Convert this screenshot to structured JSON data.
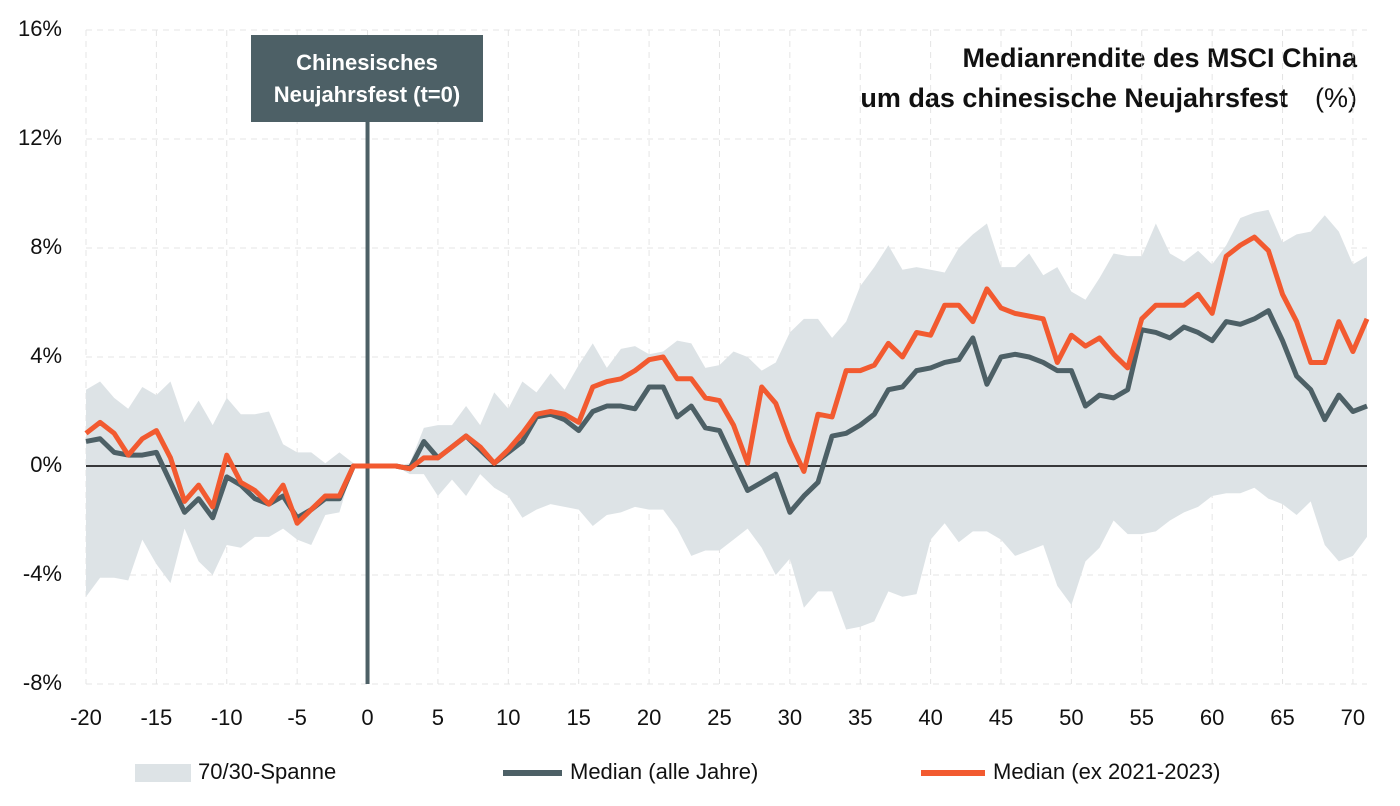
{
  "chart_data": {
    "type": "line",
    "title": [
      "Medianrendite des MSCI China",
      "um das chinesische Neujahrsfest"
    ],
    "title_unit": "(%)",
    "annotation": {
      "x": 0,
      "lines": [
        "Chinesisches",
        "Neujahrsfest (t=0)"
      ]
    },
    "x": [
      -20,
      -19,
      -18,
      -17,
      -16,
      -15,
      -14,
      -13,
      -12,
      -11,
      -10,
      -9,
      -8,
      -7,
      -6,
      -5,
      -4,
      -3,
      -2,
      -1,
      0,
      1,
      2,
      3,
      4,
      5,
      6,
      7,
      8,
      9,
      10,
      11,
      12,
      13,
      14,
      15,
      16,
      17,
      18,
      19,
      20,
      21,
      22,
      23,
      24,
      25,
      26,
      27,
      28,
      29,
      30,
      31,
      32,
      33,
      34,
      35,
      36,
      37,
      38,
      39,
      40,
      41,
      42,
      43,
      44,
      45,
      46,
      47,
      48,
      49,
      50,
      51,
      52,
      53,
      54,
      55,
      56,
      57,
      58,
      59,
      60,
      61,
      62,
      63,
      64,
      65,
      66,
      67,
      68,
      69,
      70,
      71
    ],
    "band": {
      "name": "70/30-Spanne",
      "color": "#dde3e6",
      "upper": [
        2.8,
        3.1,
        2.5,
        2.1,
        2.9,
        2.6,
        3.1,
        1.6,
        2.4,
        1.5,
        2.5,
        1.9,
        1.9,
        2.0,
        0.8,
        0.5,
        0.5,
        0.1,
        0.5,
        0.1,
        0,
        0,
        0,
        0.1,
        1.4,
        1.5,
        1.5,
        2.2,
        1.5,
        2.7,
        2.1,
        3.1,
        2.7,
        3.4,
        2.8,
        3.7,
        4.5,
        3.6,
        4.3,
        4.4,
        4.1,
        4.2,
        4.6,
        4.5,
        3.6,
        3.7,
        4.2,
        4.0,
        3.5,
        3.8,
        4.9,
        5.4,
        5.4,
        4.7,
        5.3,
        6.6,
        7.3,
        8.1,
        7.2,
        7.3,
        7.2,
        7.1,
        8.0,
        8.5,
        8.9,
        7.3,
        7.3,
        7.8,
        7.0,
        7.3,
        6.4,
        6.1,
        6.9,
        7.8,
        7.7,
        7.7,
        8.9,
        7.8,
        7.5,
        7.9,
        7.4,
        8.1,
        9.1,
        9.3,
        9.4,
        8.2,
        8.5,
        8.6,
        9.2,
        8.6,
        7.4,
        7.7
      ],
      "lower": [
        -4.8,
        -4.1,
        -4.1,
        -4.2,
        -2.7,
        -3.6,
        -4.3,
        -2.3,
        -3.5,
        -4.0,
        -2.9,
        -3.0,
        -2.6,
        -2.6,
        -2.3,
        -2.7,
        -2.9,
        -1.8,
        -1.7,
        0.0,
        0,
        0,
        0,
        -0.3,
        -0.3,
        -1.1,
        -0.5,
        -1.1,
        -0.3,
        -0.8,
        -1.1,
        -1.9,
        -1.6,
        -1.4,
        -1.5,
        -1.6,
        -2.2,
        -1.8,
        -1.7,
        -1.5,
        -1.6,
        -1.6,
        -2.3,
        -3.3,
        -3.1,
        -3.1,
        -2.7,
        -2.3,
        -3.0,
        -4.0,
        -3.4,
        -5.2,
        -4.6,
        -4.6,
        -6.0,
        -5.9,
        -5.7,
        -4.6,
        -4.8,
        -4.7,
        -2.7,
        -2.1,
        -2.8,
        -2.4,
        -2.4,
        -2.7,
        -3.3,
        -3.1,
        -2.9,
        -4.4,
        -5.1,
        -3.5,
        -3.0,
        -2.0,
        -2.5,
        -2.5,
        -2.4,
        -2.0,
        -1.7,
        -1.5,
        -1.1,
        -1.0,
        -1.0,
        -0.8,
        -1.2,
        -1.4,
        -1.8,
        -1.3,
        -2.9,
        -3.5,
        -3.3,
        -2.6
      ]
    },
    "series": [
      {
        "name": "Median (alle Jahre)",
        "color": "#4d6066",
        "values": [
          0.9,
          1.0,
          0.5,
          0.4,
          0.4,
          0.5,
          -0.6,
          -1.7,
          -1.2,
          -1.9,
          -0.4,
          -0.7,
          -1.2,
          -1.4,
          -1.1,
          -1.9,
          -1.6,
          -1.2,
          -1.2,
          0.0,
          0,
          0,
          0,
          -0.1,
          0.9,
          0.3,
          0.7,
          1.1,
          0.6,
          0.1,
          0.5,
          0.9,
          1.8,
          1.9,
          1.7,
          1.3,
          2.0,
          2.2,
          2.2,
          2.1,
          2.9,
          2.9,
          1.8,
          2.2,
          1.4,
          1.3,
          0.2,
          -0.9,
          -0.6,
          -0.3,
          -1.7,
          -1.1,
          -0.6,
          1.1,
          1.2,
          1.5,
          1.9,
          2.8,
          2.9,
          3.5,
          3.6,
          3.8,
          3.9,
          4.7,
          3.0,
          4.0,
          4.1,
          4.0,
          3.8,
          3.5,
          3.5,
          2.2,
          2.6,
          2.5,
          2.8,
          5.0,
          4.9,
          4.7,
          5.1,
          4.9,
          4.6,
          5.3,
          5.2,
          5.4,
          5.7,
          4.6,
          3.3,
          2.8,
          1.7,
          2.6,
          2.0,
          2.2
        ]
      },
      {
        "name": "Median (ex 2021-2023)",
        "color": "#f25a30",
        "values": [
          1.2,
          1.6,
          1.2,
          0.4,
          1.0,
          1.3,
          0.3,
          -1.3,
          -0.7,
          -1.5,
          0.4,
          -0.6,
          -0.9,
          -1.4,
          -0.7,
          -2.1,
          -1.6,
          -1.1,
          -1.1,
          0.0,
          0,
          0,
          0,
          -0.1,
          0.3,
          0.3,
          0.7,
          1.1,
          0.7,
          0.1,
          0.6,
          1.2,
          1.9,
          2.0,
          1.9,
          1.6,
          2.9,
          3.1,
          3.2,
          3.5,
          3.9,
          4.0,
          3.2,
          3.2,
          2.5,
          2.4,
          1.5,
          0.1,
          2.9,
          2.3,
          0.9,
          -0.2,
          1.9,
          1.8,
          3.5,
          3.5,
          3.7,
          4.5,
          4.0,
          4.9,
          4.8,
          5.9,
          5.9,
          5.3,
          6.5,
          5.8,
          5.6,
          5.5,
          5.4,
          3.8,
          4.8,
          4.4,
          4.7,
          4.1,
          3.6,
          5.4,
          5.9,
          5.9,
          5.9,
          6.3,
          5.6,
          7.7,
          8.1,
          8.4,
          7.9,
          6.3,
          5.3,
          3.8,
          3.8,
          5.3,
          4.2,
          5.4
        ]
      }
    ],
    "xlim": [
      -20,
      71
    ],
    "ylim": [
      -8,
      16
    ],
    "xticks": [
      -20,
      -15,
      -10,
      -5,
      0,
      5,
      10,
      15,
      20,
      25,
      30,
      35,
      40,
      45,
      50,
      55,
      60,
      65,
      70
    ],
    "yticks": [
      {
        "value": -8,
        "label": "-8%"
      },
      {
        "value": -4,
        "label": "-4%"
      },
      {
        "value": 0,
        "label": "0%"
      },
      {
        "value": 4,
        "label": "4%"
      },
      {
        "value": 8,
        "label": "8%"
      },
      {
        "value": 12,
        "label": "12%"
      },
      {
        "value": 16,
        "label": "16%"
      }
    ],
    "grid": true,
    "legend": "bottom"
  }
}
